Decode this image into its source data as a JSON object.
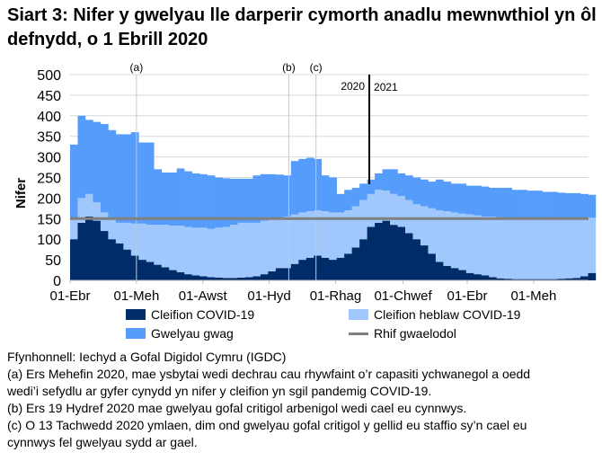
{
  "title": "Siart 3: Nifer y gwelyau lle darperir cymorth anadlu mewnwthiol yn ôl defnydd, o 1 Ebrill 2020",
  "chart_data": {
    "type": "bar",
    "stacked": true,
    "title": "Siart 3: Nifer y gwelyau lle darperir cymorth anadlu mewnwthiol yn ôl defnydd, o 1 Ebrill 2020",
    "ylabel": "Nifer",
    "xlabel": "",
    "ylim": [
      0,
      500
    ],
    "yticks": [
      "0",
      "50",
      "100",
      "150",
      "200",
      "250",
      "300",
      "350",
      "400",
      "450",
      "500"
    ],
    "x_start": "2020-04-01",
    "x_step_days": 7,
    "xtick_labels": [
      {
        "label": "01-Ebr",
        "day": 0
      },
      {
        "label": "01-Meh",
        "day": 61
      },
      {
        "label": "01-Awst",
        "day": 122
      },
      {
        "label": "01-Hyd",
        "day": 183
      },
      {
        "label": "01-Rhag",
        "day": 244
      },
      {
        "label": "01-Chwef",
        "day": 306
      },
      {
        "label": "01-Ebr",
        "day": 365
      },
      {
        "label": "01-Meh",
        "day": 426
      }
    ],
    "series": [
      {
        "name": "Cleifion COVID-19",
        "color": "#002d6a",
        "values": [
          100,
          140,
          155,
          145,
          120,
          100,
          90,
          75,
          60,
          50,
          45,
          38,
          32,
          25,
          20,
          15,
          12,
          10,
          8,
          7,
          6,
          6,
          7,
          8,
          10,
          15,
          22,
          30,
          30,
          40,
          50,
          55,
          60,
          55,
          50,
          55,
          65,
          80,
          100,
          130,
          140,
          145,
          135,
          130,
          115,
          100,
          85,
          65,
          45,
          35,
          30,
          25,
          18,
          15,
          12,
          8,
          5,
          4,
          3,
          3,
          3,
          3,
          3,
          3,
          4,
          5,
          6,
          10,
          18
        ]
      },
      {
        "name": "Cleifion heblaw COVID-19",
        "color": "#a1c8fc",
        "values": [
          50,
          60,
          55,
          45,
          45,
          50,
          50,
          65,
          78,
          88,
          90,
          97,
          103,
          108,
          113,
          115,
          116,
          118,
          117,
          121,
          124,
          129,
          133,
          132,
          130,
          130,
          126,
          120,
          125,
          120,
          115,
          113,
          110,
          113,
          115,
          110,
          105,
          100,
          95,
          80,
          80,
          73,
          75,
          75,
          80,
          85,
          95,
          110,
          125,
          133,
          135,
          137,
          142,
          143,
          143,
          147,
          147,
          146,
          147,
          147,
          147,
          149,
          149,
          147,
          146,
          145,
          144,
          140,
          134
        ]
      },
      {
        "name": "Gwelyau gwag",
        "color": "#559cfb",
        "values": [
          180,
          200,
          180,
          195,
          215,
          215,
          215,
          215,
          222,
          197,
          200,
          135,
          127,
          129,
          139,
          135,
          132,
          130,
          130,
          122,
          118,
          112,
          107,
          107,
          115,
          113,
          110,
          107,
          100,
          130,
          130,
          130,
          125,
          87,
          85,
          45,
          50,
          45,
          40,
          35,
          40,
          52,
          60,
          55,
          60,
          65,
          65,
          65,
          75,
          72,
          70,
          73,
          70,
          72,
          73,
          70,
          73,
          75,
          70,
          70,
          68,
          66,
          63,
          65,
          63,
          62,
          62,
          60,
          56
        ]
      }
    ],
    "baseline": {
      "name": "Rhif gwaelodol",
      "value": 150,
      "color": "#808080"
    },
    "annotations": [
      {
        "label": "(a)",
        "day": 61
      },
      {
        "label": "(b)",
        "day": 201
      },
      {
        "label": "(c)",
        "day": 226
      }
    ],
    "year_divider": {
      "day": 275,
      "left_label": "2020",
      "right_label": "2021"
    },
    "legend_position": "bottom"
  },
  "notes": [
    "Ffynhonnell: Iechyd a Gofal Digidol Cymru (IGDC)",
    "(a) Ers Mehefin 2020, mae ysbytai wedi dechrau cau rhywfaint o’r capasiti ychwanegol a oedd",
    "wedi’i sefydlu ar gyfer cynydd yn nifer y cleifion yn sgil pandemig COVID-19.",
    "(b) Ers 19 Hydref 2020 mae gwelyau gofal critigol arbenigol wedi cael eu cynnwys.",
    "(c) O 13 Tachwedd 2020 ymlaen, dim ond gwelyau gofal critigol y gellid eu staffio sy’n cael eu",
    "cynnwys fel gwelyau sydd ar gael."
  ]
}
